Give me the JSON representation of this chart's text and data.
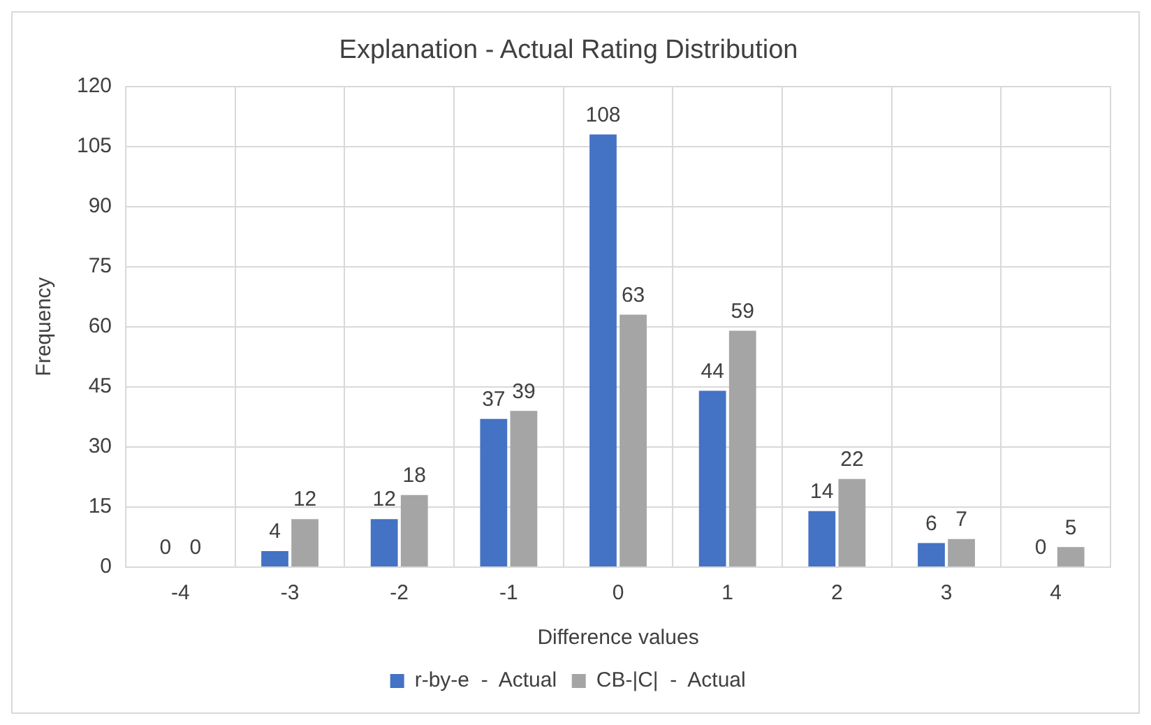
{
  "chart_data": {
    "type": "bar",
    "title": "Explanation - Actual Rating Distribution",
    "xlabel": "Difference values",
    "ylabel": "Frequency",
    "categories": [
      "-4",
      "-3",
      "-2",
      "-1",
      "0",
      "1",
      "2",
      "3",
      "4"
    ],
    "series": [
      {
        "name": "r-by-e  -  Actual",
        "color": "#4472c4",
        "values": [
          0,
          4,
          12,
          37,
          108,
          44,
          14,
          6,
          0
        ]
      },
      {
        "name": "CB-|C|  -  Actual",
        "color": "#a5a5a5",
        "values": [
          0,
          12,
          18,
          39,
          63,
          59,
          22,
          7,
          5
        ]
      }
    ],
    "ylim": [
      0,
      120
    ],
    "yticks": [
      0,
      15,
      30,
      45,
      60,
      75,
      90,
      105,
      120
    ],
    "grid": true,
    "legend": "bottom",
    "data_labels": true
  }
}
